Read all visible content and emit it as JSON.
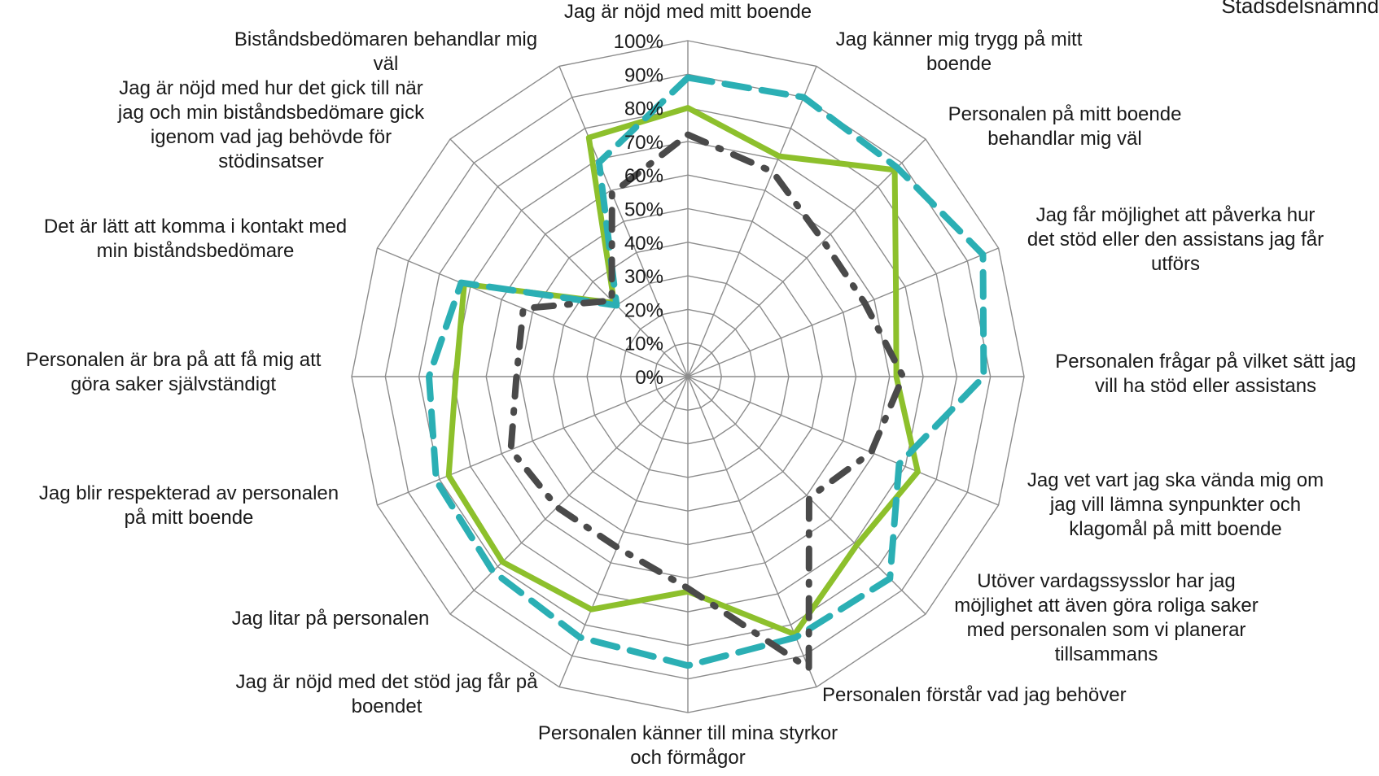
{
  "legend": {
    "partial_label": "Stadsdelsnämnd"
  },
  "chart_data": {
    "type": "radar",
    "rmax": 100,
    "r_ticks": [
      "0%",
      "10%",
      "20%",
      "30%",
      "40%",
      "50%",
      "60%",
      "70%",
      "80%",
      "90%",
      "100%"
    ],
    "categories": [
      "Jag är nöjd med mitt boende",
      "Jag känner mig trygg på mitt boende",
      "Personalen på mitt boende behandlar mig väl",
      "Jag får möjlighet att påverka hur det stöd eller den assistans jag får utförs",
      "Personalen frågar på vilket sätt jag vill ha stöd eller assistans",
      "Jag vet vart jag ska vända mig om jag vill lämna synpunkter och klagomål på mitt boende",
      "Utöver vardagssysslor har jag möjlighet att även göra roliga saker med personalen som vi planerar tillsammans",
      "Personalen förstår vad jag behöver",
      "Personalen känner till mina styrkor och förmågor",
      "Jag är nöjd med det stöd jag får på boendet",
      "Jag litar på personalen",
      "Jag blir respekterad av personalen på mitt boende",
      "Personalen är bra på att få mig att göra saker självständigt",
      "Det är lätt att komma i kontakt med min biståndsbedömare",
      "Jag är nöjd med hur det gick till när jag och min biståndsbedömare gick igenom vad jag behövde för stödinsatser",
      "Biståndsbedömaren behandlar mig väl"
    ],
    "series": [
      {
        "color": "#8dc02c",
        "style": "solid",
        "values": [
          80,
          71,
          87,
          67,
          62,
          74,
          71,
          83,
          64,
          75,
          78,
          77,
          69,
          72,
          31,
          77
        ]
      },
      {
        "color": "#2bafb4",
        "style": "dashed",
        "values": [
          89,
          90,
          88,
          95,
          88,
          68,
          85,
          84,
          86,
          84,
          82,
          81,
          77,
          73,
          30,
          69
        ]
      },
      {
        "color": "#4a4a4a",
        "style": "dash-dot",
        "values": [
          72,
          66,
          57,
          57,
          64,
          59,
          51,
          94,
          63,
          55,
          55,
          57,
          51,
          53,
          32,
          59
        ]
      }
    ]
  }
}
